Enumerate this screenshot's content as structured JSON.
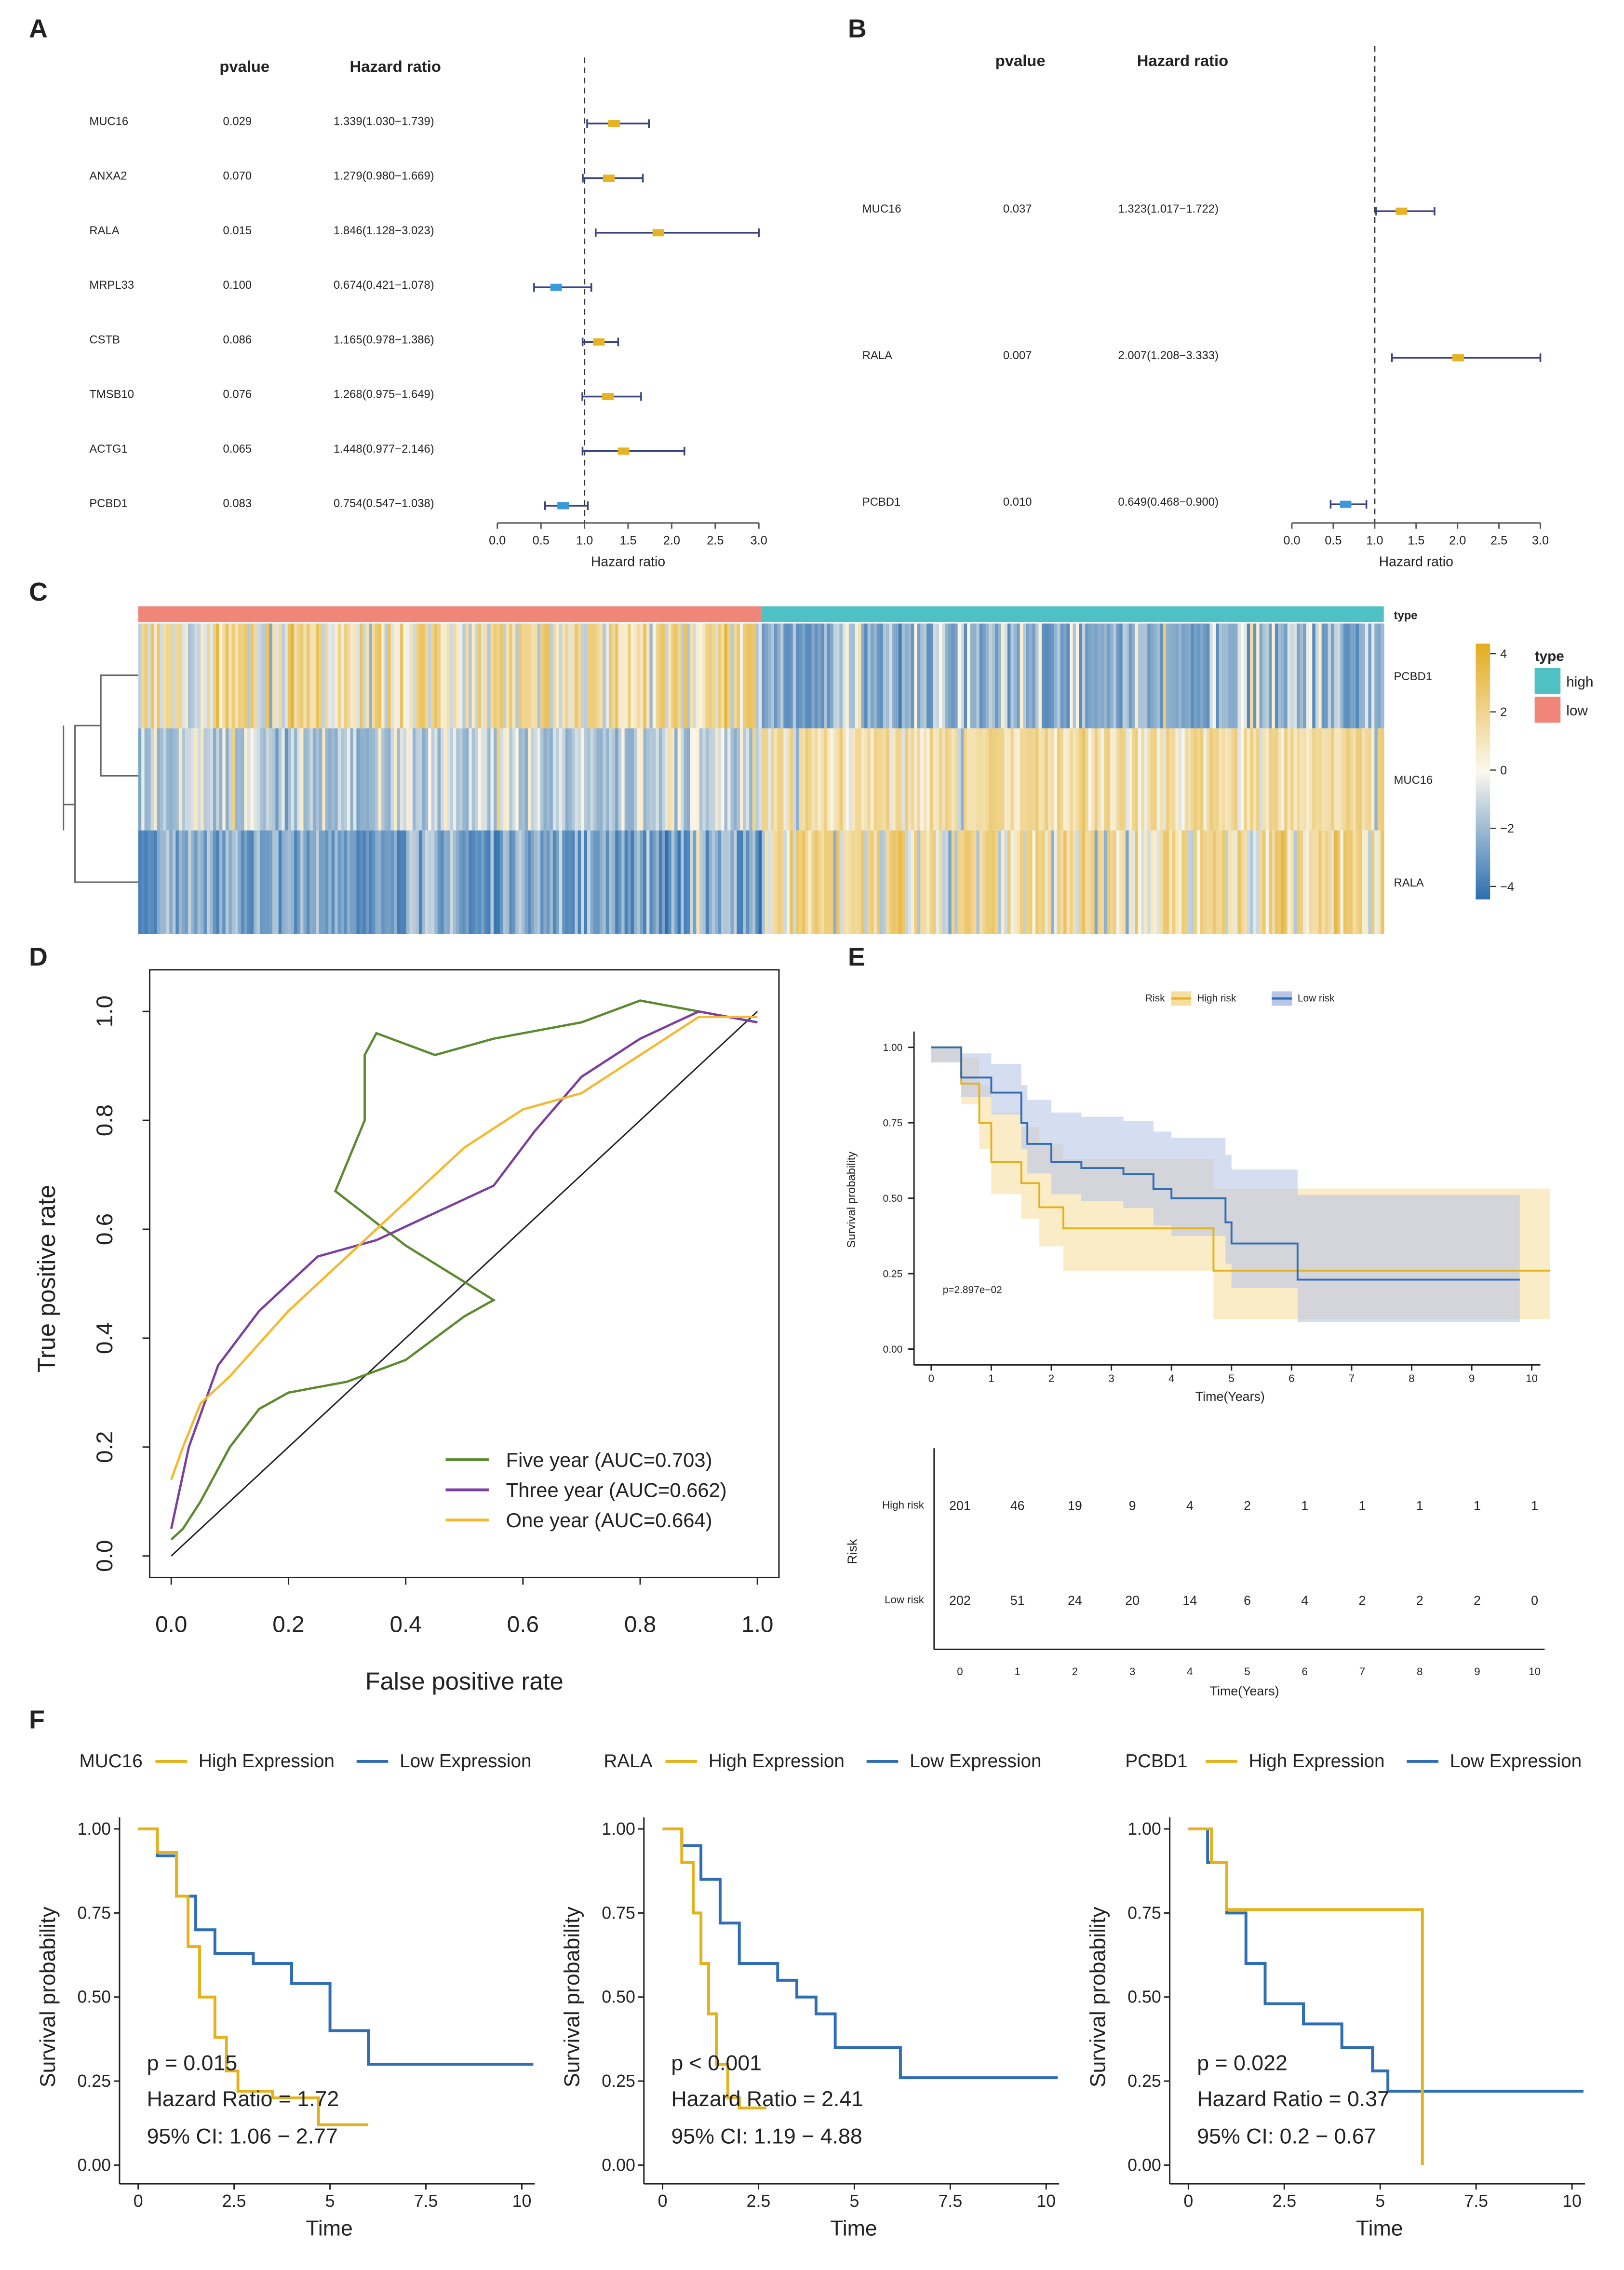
{
  "panel_labels": [
    "A",
    "B",
    "C",
    "D",
    "E",
    "F"
  ],
  "chart_data": [
    {
      "type": "forest",
      "panel": "A",
      "header_pvalue": "pvalue",
      "header_hr": "Hazard ratio",
      "xlabel": "Hazard ratio",
      "xlim": [
        0,
        3
      ],
      "xticks": [
        "0.0",
        "0.5",
        "1.0",
        "1.5",
        "2.0",
        "2.5",
        "3.0"
      ],
      "rows": [
        {
          "gene": "MUC16",
          "pvalue": "0.029",
          "hr_text": "1.339(1.030−1.739)",
          "hr": 1.339,
          "lo": 1.03,
          "hi": 1.739
        },
        {
          "gene": "ANXA2",
          "pvalue": "0.070",
          "hr_text": "1.279(0.980−1.669)",
          "hr": 1.279,
          "lo": 0.98,
          "hi": 1.669
        },
        {
          "gene": "RALA",
          "pvalue": "0.015",
          "hr_text": "1.846(1.128−3.023)",
          "hr": 1.846,
          "lo": 1.128,
          "hi": 3.023
        },
        {
          "gene": "MRPL33",
          "pvalue": "0.100",
          "hr_text": "0.674(0.421−1.078)",
          "hr": 0.674,
          "lo": 0.421,
          "hi": 1.078
        },
        {
          "gene": "CSTB",
          "pvalue": "0.086",
          "hr_text": "1.165(0.978−1.386)",
          "hr": 1.165,
          "lo": 0.978,
          "hi": 1.386
        },
        {
          "gene": "TMSB10",
          "pvalue": "0.076",
          "hr_text": "1.268(0.975−1.649)",
          "hr": 1.268,
          "lo": 0.975,
          "hi": 1.649
        },
        {
          "gene": "ACTG1",
          "pvalue": "0.065",
          "hr_text": "1.448(0.977−2.146)",
          "hr": 1.448,
          "lo": 0.977,
          "hi": 2.146
        },
        {
          "gene": "PCBD1",
          "pvalue": "0.083",
          "hr_text": "0.754(0.547−1.038)",
          "hr": 0.754,
          "lo": 0.547,
          "hi": 1.038
        }
      ]
    },
    {
      "type": "forest",
      "panel": "B",
      "header_pvalue": "pvalue",
      "header_hr": "Hazard ratio",
      "xlabel": "Hazard ratio",
      "xlim": [
        0,
        3
      ],
      "xticks": [
        "0.0",
        "0.5",
        "1.0",
        "1.5",
        "2.0",
        "2.5",
        "3.0"
      ],
      "rows": [
        {
          "gene": "MUC16",
          "pvalue": "0.037",
          "hr_text": "1.323(1.017−1.722)",
          "hr": 1.323,
          "lo": 1.017,
          "hi": 1.722
        },
        {
          "gene": "RALA",
          "pvalue": "0.007",
          "hr_text": "2.007(1.208−3.333)",
          "hr": 2.007,
          "lo": 1.208,
          "hi": 3.333
        },
        {
          "gene": "PCBD1",
          "pvalue": "0.010",
          "hr_text": "0.649(0.468−0.900)",
          "hr": 0.649,
          "lo": 0.468,
          "hi": 0.9
        }
      ]
    },
    {
      "type": "heatmap",
      "panel": "C",
      "genes": [
        "PCBD1",
        "MUC16",
        "RALA"
      ],
      "annotation_label": "type",
      "legend_title": "type",
      "groups": [
        {
          "name": "high",
          "color": "#4fc1c4"
        },
        {
          "name": "low",
          "color": "#f0857a"
        }
      ],
      "scale_ticks": [
        "4",
        "2",
        "0",
        "−2",
        "−4"
      ],
      "scale_range": [
        -4,
        4
      ],
      "scale_colors": {
        "low": "#2c6fb0",
        "mid": "#fbf8ee",
        "high": "#e3ab1f"
      }
    },
    {
      "type": "line",
      "panel": "D",
      "xlabel": "False positive rate",
      "ylabel": "True positive rate",
      "xlim": [
        0,
        1
      ],
      "ylim": [
        0,
        1
      ],
      "xticks": [
        "0.0",
        "0.2",
        "0.4",
        "0.6",
        "0.8",
        "1.0"
      ],
      "yticks": [
        "0.0",
        "0.2",
        "0.4",
        "0.6",
        "0.8",
        "1.0"
      ],
      "legend_position": "bottom-right",
      "series": [
        {
          "name": "Five year (AUC=0.703)",
          "color": "#5b8a2f",
          "points": [
            [
              0,
              0.03
            ],
            [
              0.02,
              0.05
            ],
            [
              0.05,
              0.1
            ],
            [
              0.1,
              0.2
            ],
            [
              0.15,
              0.27
            ],
            [
              0.2,
              0.3
            ],
            [
              0.3,
              0.32
            ],
            [
              0.4,
              0.36
            ],
            [
              0.45,
              0.4
            ],
            [
              0.5,
              0.44
            ],
            [
              0.55,
              0.47
            ],
            [
              0.4,
              0.57
            ],
            [
              0.28,
              0.67
            ],
            [
              0.33,
              0.8
            ],
            [
              0.33,
              0.92
            ],
            [
              0.35,
              0.96
            ],
            [
              0.45,
              0.92
            ],
            [
              0.55,
              0.95
            ],
            [
              0.7,
              0.98
            ],
            [
              0.8,
              1.02
            ],
            [
              0.9,
              1.0
            ],
            [
              1,
              0.98
            ]
          ]
        },
        {
          "name": "Three year (AUC=0.662)",
          "color": "#7a3fa1",
          "points": [
            [
              0,
              0.05
            ],
            [
              0.03,
              0.2
            ],
            [
              0.08,
              0.35
            ],
            [
              0.15,
              0.45
            ],
            [
              0.25,
              0.55
            ],
            [
              0.35,
              0.58
            ],
            [
              0.45,
              0.63
            ],
            [
              0.55,
              0.68
            ],
            [
              0.62,
              0.78
            ],
            [
              0.7,
              0.88
            ],
            [
              0.8,
              0.95
            ],
            [
              0.9,
              1.0
            ],
            [
              1,
              0.98
            ]
          ]
        },
        {
          "name": "One year (AUC=0.664)",
          "color": "#f5b82e",
          "points": [
            [
              0,
              0.14
            ],
            [
              0.02,
              0.2
            ],
            [
              0.05,
              0.28
            ],
            [
              0.1,
              0.33
            ],
            [
              0.2,
              0.45
            ],
            [
              0.3,
              0.55
            ],
            [
              0.4,
              0.65
            ],
            [
              0.5,
              0.75
            ],
            [
              0.6,
              0.82
            ],
            [
              0.7,
              0.85
            ],
            [
              0.8,
              0.92
            ],
            [
              0.9,
              0.99
            ],
            [
              1,
              0.99
            ]
          ]
        }
      ]
    },
    {
      "type": "km",
      "panel": "E",
      "legend_title": "Risk",
      "xlabel": "Time(Years)",
      "ylabel": "Survival probability",
      "pvalue_text": "p=2.897e−02",
      "xticks": [
        "0",
        "1",
        "2",
        "3",
        "4",
        "5",
        "6",
        "7",
        "8",
        "9",
        "10"
      ],
      "yticks": [
        "0.00",
        "0.25",
        "0.50",
        "0.75",
        "1.00"
      ],
      "series": [
        {
          "name": "High risk",
          "color": "#e3b21c",
          "band": "#f5dfa0",
          "points": [
            [
              0,
              1
            ],
            [
              0.5,
              0.88
            ],
            [
              0.8,
              0.75
            ],
            [
              1,
              0.62
            ],
            [
              1.5,
              0.55
            ],
            [
              1.8,
              0.47
            ],
            [
              2.2,
              0.4
            ],
            [
              4.6,
              0.4
            ],
            [
              4.7,
              0.26
            ],
            [
              10.3,
              0.26
            ]
          ]
        },
        {
          "name": "Low risk",
          "color": "#2f6db5",
          "band": "#b9c6e8",
          "points": [
            [
              0,
              1
            ],
            [
              0.5,
              0.9
            ],
            [
              1,
              0.85
            ],
            [
              1.5,
              0.75
            ],
            [
              1.6,
              0.68
            ],
            [
              2,
              0.62
            ],
            [
              2.5,
              0.6
            ],
            [
              3.2,
              0.58
            ],
            [
              3.7,
              0.53
            ],
            [
              4,
              0.5
            ],
            [
              4.8,
              0.5
            ],
            [
              4.9,
              0.42
            ],
            [
              5,
              0.35
            ],
            [
              6.1,
              0.35
            ],
            [
              6.1,
              0.23
            ],
            [
              9.8,
              0.23
            ]
          ]
        }
      ],
      "risk_table": {
        "ylabel": "Risk",
        "xlabel": "Time(Years)",
        "rows": [
          {
            "label": "High risk",
            "color": "#e3b21c",
            "counts": [
              "201",
              "46",
              "19",
              "9",
              "4",
              "2",
              "1",
              "1",
              "1",
              "1",
              "1"
            ]
          },
          {
            "label": "Low risk",
            "color": "#2f6db5",
            "counts": [
              "202",
              "51",
              "24",
              "20",
              "14",
              "6",
              "4",
              "2",
              "2",
              "2",
              "0"
            ]
          }
        ]
      }
    },
    {
      "type": "km",
      "panel": "F",
      "plots": [
        {
          "gene": "MUC16",
          "high_label": "High Expression",
          "low_label": "Low Expression",
          "p": "p = 0.015",
          "hr": "Hazard Ratio = 1.72",
          "ci": "95% CI: 1.06 − 2.77",
          "high": [
            [
              0,
              1
            ],
            [
              0.5,
              0.93
            ],
            [
              1,
              0.8
            ],
            [
              1.3,
              0.65
            ],
            [
              1.6,
              0.5
            ],
            [
              2,
              0.38
            ],
            [
              2.3,
              0.28
            ],
            [
              2.6,
              0.22
            ],
            [
              3.5,
              0.2
            ],
            [
              4.7,
              0.12
            ],
            [
              6,
              0.12
            ]
          ],
          "low": [
            [
              0,
              1
            ],
            [
              0.5,
              0.92
            ],
            [
              1,
              0.8
            ],
            [
              1.5,
              0.7
            ],
            [
              2,
              0.63
            ],
            [
              3,
              0.6
            ],
            [
              4,
              0.54
            ],
            [
              5,
              0.4
            ],
            [
              6,
              0.3
            ],
            [
              10.3,
              0.3
            ]
          ]
        },
        {
          "gene": "RALA",
          "high_label": "High Expression",
          "low_label": "Low Expression",
          "p": "p < 0.001",
          "hr": "Hazard Ratio = 2.41",
          "ci": "95% CI: 1.19 − 4.88",
          "high": [
            [
              0,
              1
            ],
            [
              0.5,
              0.9
            ],
            [
              0.8,
              0.75
            ],
            [
              1,
              0.6
            ],
            [
              1.2,
              0.45
            ],
            [
              1.4,
              0.3
            ],
            [
              1.7,
              0.2
            ],
            [
              2,
              0.17
            ],
            [
              2.7,
              0.17
            ]
          ],
          "low": [
            [
              0,
              1
            ],
            [
              0.5,
              0.95
            ],
            [
              1,
              0.85
            ],
            [
              1.5,
              0.72
            ],
            [
              2,
              0.6
            ],
            [
              3,
              0.55
            ],
            [
              3.5,
              0.5
            ],
            [
              4,
              0.45
            ],
            [
              4.5,
              0.35
            ],
            [
              6.2,
              0.26
            ],
            [
              10.3,
              0.26
            ]
          ]
        },
        {
          "gene": "PCBD1",
          "high_label": "High Expression",
          "low_label": "Low Expression",
          "p": "p = 0.022",
          "hr": "Hazard Ratio = 0.37",
          "ci": "95% CI: 0.2 − 0.67",
          "high": [
            [
              0,
              1
            ],
            [
              0.3,
              1
            ],
            [
              0.6,
              0.9
            ],
            [
              1,
              0.76
            ],
            [
              6.1,
              0.76
            ],
            [
              6.1,
              0
            ]
          ],
          "low": [
            [
              0,
              1
            ],
            [
              0.5,
              0.9
            ],
            [
              1,
              0.75
            ],
            [
              1.5,
              0.6
            ],
            [
              2,
              0.48
            ],
            [
              3,
              0.42
            ],
            [
              4,
              0.35
            ],
            [
              4.8,
              0.28
            ],
            [
              5.2,
              0.22
            ],
            [
              10.3,
              0.22
            ]
          ]
        }
      ],
      "high_color": "#e3b21c",
      "low_color": "#2f6db5",
      "xlabel": "Time",
      "ylabel": "Survival probability",
      "xticks": [
        "0",
        "2.5",
        "5",
        "7.5",
        "10"
      ],
      "yticks": [
        "0.00",
        "0.25",
        "0.50",
        "0.75",
        "1.00"
      ]
    }
  ]
}
